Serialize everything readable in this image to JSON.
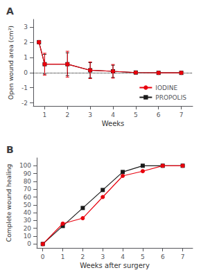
{
  "chart_data": [
    {
      "type": "line",
      "title": "A",
      "xlabel": "Weeks",
      "ylabel": "Open wound area (cm²)",
      "xlim": [
        0.5,
        7.5
      ],
      "xticks": [
        1,
        2,
        3,
        4,
        5,
        6,
        7
      ],
      "ylim": [
        -2.2,
        3.5
      ],
      "yticks": [
        -2,
        -1,
        0,
        1,
        2,
        3
      ],
      "grid": false,
      "legend": "lower right",
      "hline": 0.0,
      "x": [
        0.75,
        1,
        2,
        3,
        4,
        5,
        6,
        7
      ],
      "series": [
        {
          "name": "IODINE",
          "color": "#e8000d",
          "marker": "circle",
          "values": [
            2.0,
            0.55,
            0.55,
            0.15,
            0.08,
            0.0,
            -0.02,
            -0.02
          ],
          "errors": [
            0.0,
            0.72,
            0.85,
            0.55,
            0.45,
            0.05,
            0.04,
            0.02
          ]
        },
        {
          "name": "PROPOLIS",
          "color": "#1a1a1a",
          "marker": "square",
          "values": [
            2.0,
            0.55,
            0.55,
            0.15,
            0.08,
            0.0,
            -0.02,
            -0.02
          ],
          "errors": [
            0.0,
            0.65,
            0.75,
            0.5,
            0.4,
            0.04,
            0.04,
            0.02
          ]
        }
      ]
    },
    {
      "type": "line",
      "title": "B",
      "xlabel": "Weeks after surgery",
      "ylabel": "Complete wound healing",
      "xlim": [
        -0.3,
        7.5
      ],
      "xticks": [
        0,
        1,
        2,
        3,
        4,
        5,
        6,
        7
      ],
      "ylim": [
        -5,
        110
      ],
      "yticks": [
        0,
        10,
        20,
        30,
        40,
        50,
        60,
        70,
        80,
        90,
        100
      ],
      "grid": false,
      "x": [
        0,
        1,
        2,
        3,
        4,
        5,
        6,
        7
      ],
      "series": [
        {
          "name": "IODINE",
          "color": "#e8000d",
          "marker": "circle",
          "values": [
            0,
            26,
            33,
            60,
            87,
            93,
            100,
            100
          ]
        },
        {
          "name": "PROPOLIS",
          "color": "#1a1a1a",
          "marker": "square",
          "values": [
            0,
            23,
            46,
            69,
            92,
            100,
            100,
            100
          ]
        }
      ]
    }
  ]
}
